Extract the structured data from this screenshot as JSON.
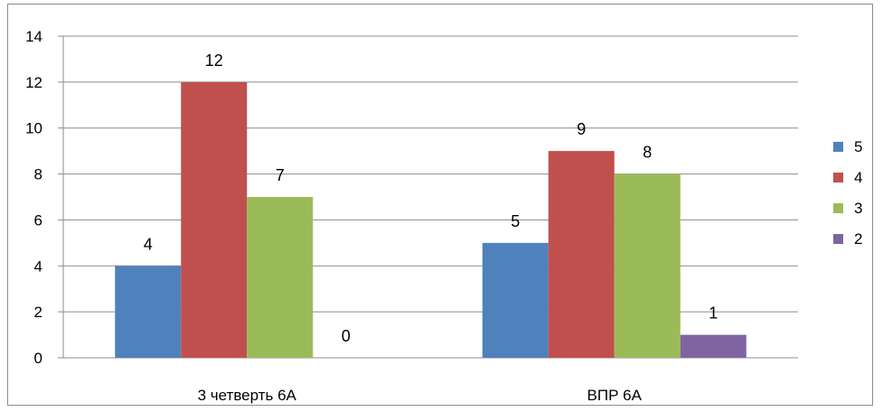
{
  "chart_data": {
    "type": "bar",
    "categories": [
      "3 четверть 6А",
      "ВПР 6А"
    ],
    "series": [
      {
        "name": "5",
        "values": [
          4,
          5
        ]
      },
      {
        "name": "4",
        "values": [
          12,
          9
        ]
      },
      {
        "name": "3",
        "values": [
          7,
          8
        ]
      },
      {
        "name": "2",
        "values": [
          0,
          1
        ]
      }
    ],
    "ylim": [
      0,
      14
    ],
    "yticks": [
      0,
      2,
      4,
      6,
      8,
      10,
      12,
      14
    ],
    "grid": true,
    "legend": "right",
    "colors": [
      "#4F81BD",
      "#C0504D",
      "#9BBB59",
      "#8064A2"
    ]
  }
}
